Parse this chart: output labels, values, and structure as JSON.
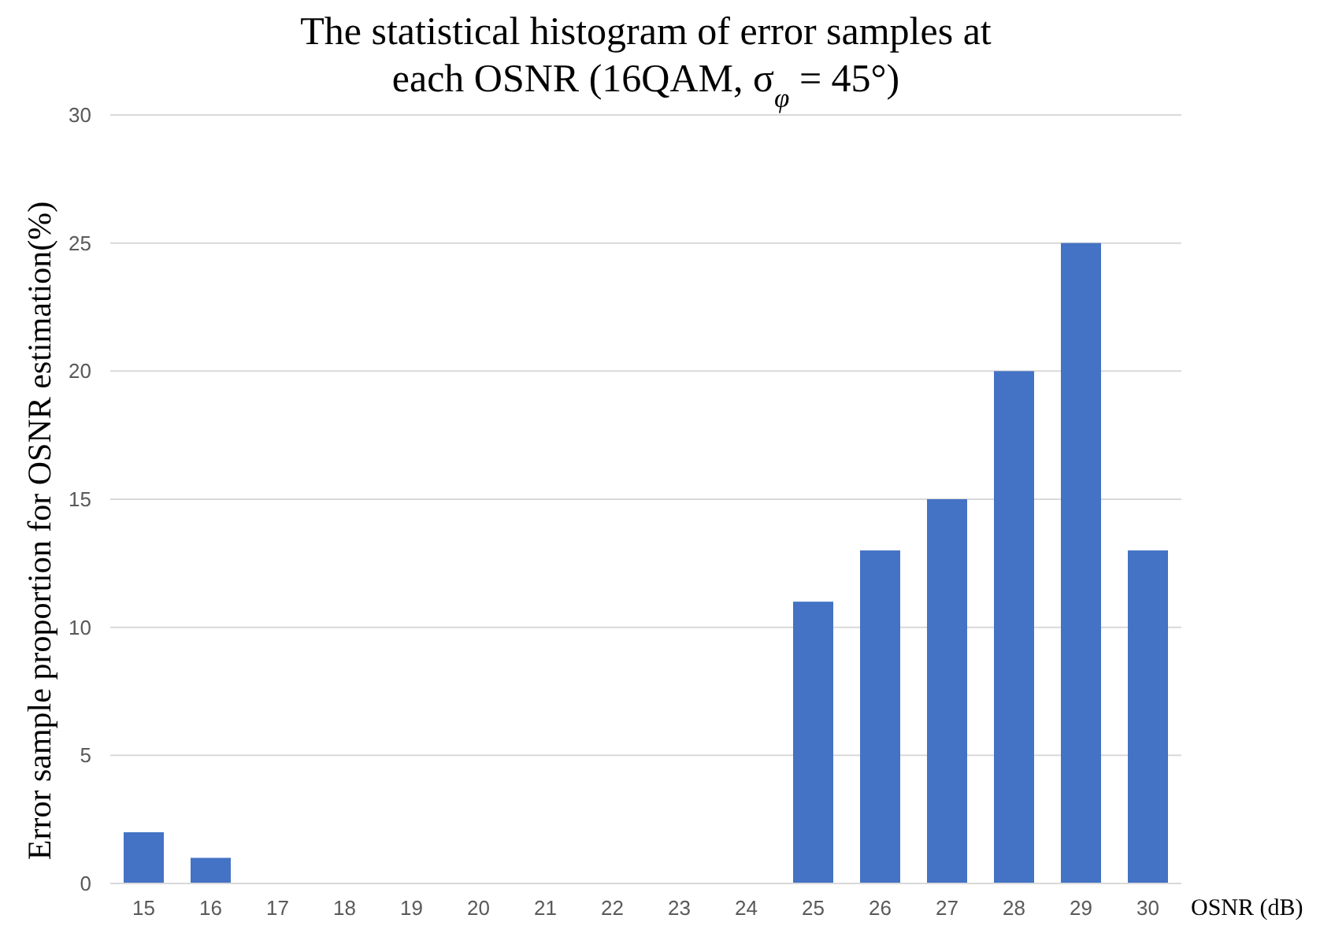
{
  "chart_data": {
    "type": "bar",
    "title": "The statistical histogram of error samples at each OSNR (16QAM, σ$_{φ}$ = 45°)",
    "xlabel": "OSNR (dB)",
    "ylabel": "Error sample proportion for OSNR estimation(%)",
    "categories": [
      "15",
      "16",
      "17",
      "18",
      "19",
      "20",
      "21",
      "22",
      "23",
      "24",
      "25",
      "26",
      "27",
      "28",
      "29",
      "30"
    ],
    "values": [
      2,
      1,
      0,
      0,
      0,
      0,
      0,
      0,
      0,
      0,
      11,
      13,
      15,
      20,
      25,
      13
    ],
    "color": "#4472c4",
    "ylim": [
      0,
      30
    ],
    "yticks": [
      0,
      5,
      10,
      15,
      20,
      25,
      30
    ],
    "grid": "y"
  }
}
